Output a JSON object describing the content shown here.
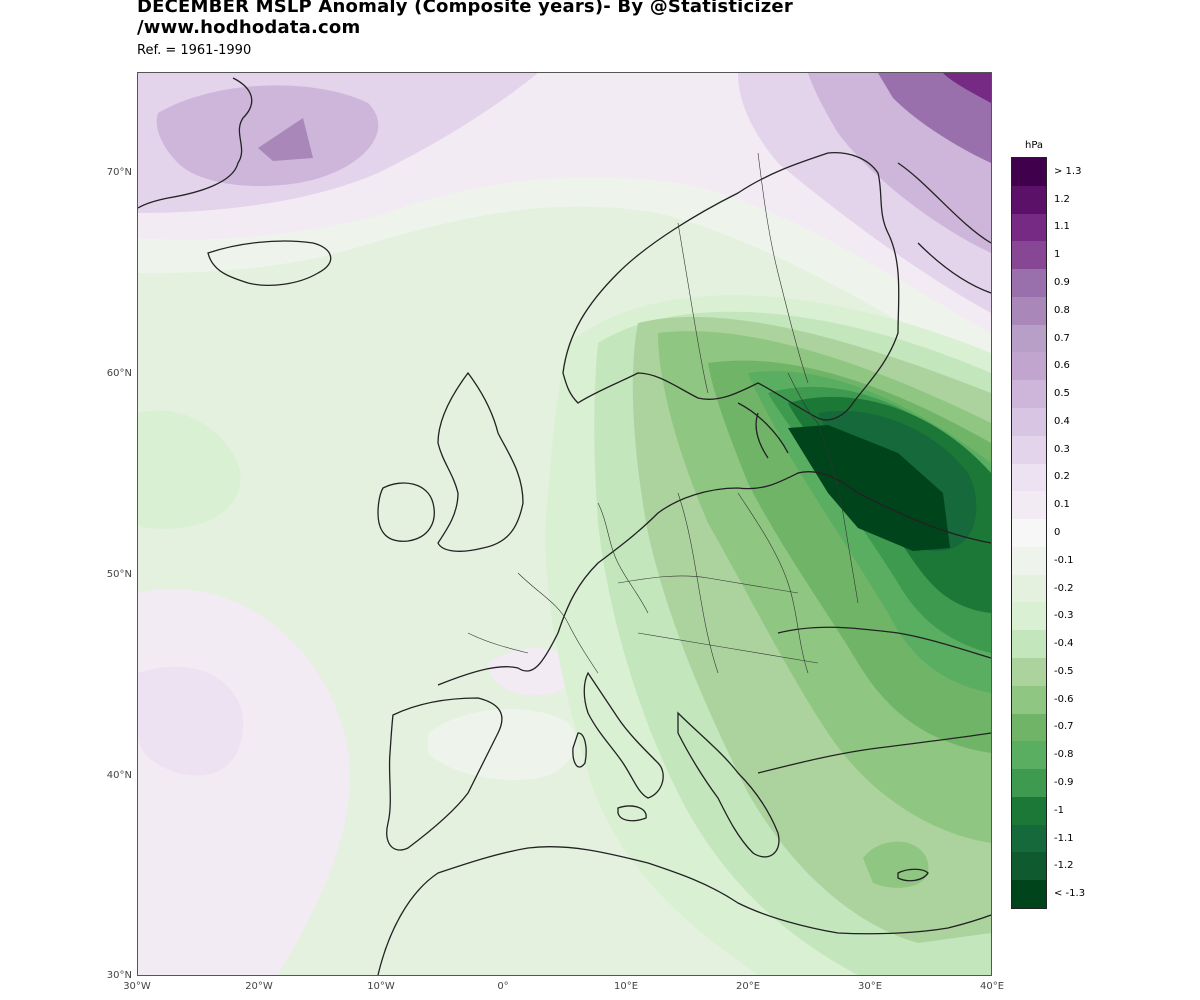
{
  "header": {
    "title_line1": "DECEMBER MSLP Anomaly (Composite years)- By @Statisticizer",
    "title_line2": "/www.hodhodata.com",
    "subtitle": "Ref. = 1961-1990"
  },
  "map": {
    "lat_labels": [
      "70°N",
      "60°N",
      "50°N",
      "40°N",
      "30°N"
    ],
    "lon_labels": [
      "30°W",
      "20°W",
      "10°W",
      "0°",
      "10°E",
      "20°E",
      "30°E",
      "40°E"
    ],
    "extent": {
      "lon": [
        -30,
        40
      ],
      "lat": [
        30,
        75
      ]
    },
    "center_min": {
      "lon": 30,
      "lat": 55,
      "value": "< -1.3"
    },
    "north_max": {
      "lon": 40,
      "lat": 74,
      "value": "> 1.3"
    }
  },
  "legend": {
    "title": "hPa",
    "labels": [
      "> 1.3",
      "1.2",
      "1.1",
      "1",
      "0.9",
      "0.8",
      "0.7",
      "0.6",
      "0.5",
      "0.4",
      "0.3",
      "0.2",
      "0.1",
      "0",
      "-0.1",
      "-0.2",
      "-0.3",
      "-0.4",
      "-0.5",
      "-0.6",
      "-0.7",
      "-0.8",
      "-0.9",
      "-1",
      "-1.1",
      "-1.2",
      "< -1.3"
    ],
    "colors": [
      "#40004b",
      "#5b1167",
      "#762a83",
      "#874795",
      "#9970ab",
      "#a987b9",
      "#b89fc8",
      "#c2a5cf",
      "#cdb6da",
      "#d8c5e3",
      "#e3d3eb",
      "#ede2f1",
      "#f2ebf4",
      "#f7f7f7",
      "#eef4ec",
      "#e4f1df",
      "#d9f0d3",
      "#c3e6bd",
      "#acd39e",
      "#8fc682",
      "#70b468",
      "#5aae61",
      "#3d9a4f",
      "#1b7837",
      "#16693a",
      "#0f5a2f",
      "#00441b"
    ]
  }
}
